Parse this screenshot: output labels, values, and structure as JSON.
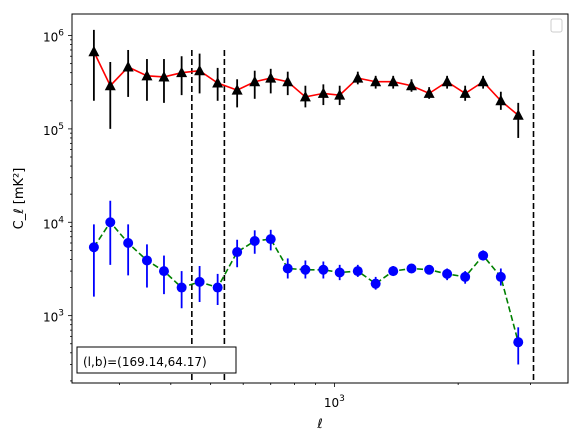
{
  "chart_data": {
    "type": "scatter",
    "xscale": "log",
    "yscale": "log",
    "xlim": [
      230,
      3700
    ],
    "ylim": [
      190,
      1700000
    ],
    "xlabel": "ℓ",
    "ylabel": "C_ℓ  [mK²]",
    "x_ticks": [
      {
        "value": 1000,
        "base": "10",
        "exp": "3"
      }
    ],
    "y_ticks": [
      {
        "value": 1000,
        "base": "10",
        "exp": "3"
      },
      {
        "value": 10000,
        "base": "10",
        "exp": "4"
      },
      {
        "value": 100000,
        "base": "10",
        "exp": "5"
      },
      {
        "value": 1000000,
        "base": "10",
        "exp": "6"
      }
    ],
    "grid": false,
    "legend": "top-right, empty",
    "annotation": "(l,b)=(169.14,64.17)",
    "vlines": [
      450,
      540,
      3050
    ],
    "series": [
      {
        "marker": "triangle",
        "marker_color": "#000000",
        "line_color": "#ff0000",
        "line_style": "solid",
        "points": [
          {
            "x": 260,
            "y": 670000,
            "lo": 200000,
            "hi": 1150000
          },
          {
            "x": 285,
            "y": 290000,
            "lo": 100000,
            "hi": 520000
          },
          {
            "x": 315,
            "y": 460000,
            "lo": 220000,
            "hi": 700000
          },
          {
            "x": 350,
            "y": 370000,
            "lo": 200000,
            "hi": 560000
          },
          {
            "x": 385,
            "y": 360000,
            "lo": 190000,
            "hi": 560000
          },
          {
            "x": 425,
            "y": 400000,
            "lo": 230000,
            "hi": 600000
          },
          {
            "x": 470,
            "y": 420000,
            "lo": 240000,
            "hi": 640000
          },
          {
            "x": 520,
            "y": 310000,
            "lo": 200000,
            "hi": 450000
          },
          {
            "x": 580,
            "y": 260000,
            "lo": 170000,
            "hi": 340000
          },
          {
            "x": 640,
            "y": 320000,
            "lo": 210000,
            "hi": 420000
          },
          {
            "x": 700,
            "y": 350000,
            "lo": 240000,
            "hi": 440000
          },
          {
            "x": 770,
            "y": 320000,
            "lo": 230000,
            "hi": 410000
          },
          {
            "x": 850,
            "y": 220000,
            "lo": 170000,
            "hi": 290000
          },
          {
            "x": 940,
            "y": 240000,
            "lo": 180000,
            "hi": 300000
          },
          {
            "x": 1030,
            "y": 230000,
            "lo": 180000,
            "hi": 290000
          },
          {
            "x": 1140,
            "y": 350000,
            "lo": 300000,
            "hi": 410000
          },
          {
            "x": 1260,
            "y": 320000,
            "lo": 270000,
            "hi": 370000
          },
          {
            "x": 1390,
            "y": 320000,
            "lo": 270000,
            "hi": 370000
          },
          {
            "x": 1540,
            "y": 290000,
            "lo": 250000,
            "hi": 340000
          },
          {
            "x": 1700,
            "y": 240000,
            "lo": 210000,
            "hi": 280000
          },
          {
            "x": 1880,
            "y": 320000,
            "lo": 270000,
            "hi": 370000
          },
          {
            "x": 2080,
            "y": 240000,
            "lo": 200000,
            "hi": 290000
          },
          {
            "x": 2300,
            "y": 320000,
            "lo": 270000,
            "hi": 370000
          },
          {
            "x": 2540,
            "y": 200000,
            "lo": 160000,
            "hi": 250000
          },
          {
            "x": 2800,
            "y": 140000,
            "lo": 80000,
            "hi": 190000
          }
        ]
      },
      {
        "marker": "circle",
        "marker_color": "#0000ff",
        "line_color": "#008000",
        "line_style": "dashed",
        "points": [
          {
            "x": 260,
            "y": 5400,
            "lo": 1600,
            "hi": 9500
          },
          {
            "x": 285,
            "y": 10000,
            "lo": 3500,
            "hi": 17000
          },
          {
            "x": 315,
            "y": 6000,
            "lo": 2700,
            "hi": 9500
          },
          {
            "x": 350,
            "y": 3900,
            "lo": 2000,
            "hi": 5800
          },
          {
            "x": 385,
            "y": 3000,
            "lo": 1700,
            "hi": 4400
          },
          {
            "x": 425,
            "y": 2000,
            "lo": 1200,
            "hi": 3000
          },
          {
            "x": 470,
            "y": 2300,
            "lo": 1400,
            "hi": 3400
          },
          {
            "x": 520,
            "y": 2000,
            "lo": 1300,
            "hi": 2800
          },
          {
            "x": 580,
            "y": 4800,
            "lo": 3300,
            "hi": 6500
          },
          {
            "x": 640,
            "y": 6300,
            "lo": 4600,
            "hi": 8200
          },
          {
            "x": 700,
            "y": 6600,
            "lo": 5000,
            "hi": 8300
          },
          {
            "x": 770,
            "y": 3200,
            "lo": 2500,
            "hi": 4100
          },
          {
            "x": 850,
            "y": 3100,
            "lo": 2500,
            "hi": 3900
          },
          {
            "x": 940,
            "y": 3100,
            "lo": 2500,
            "hi": 3800
          },
          {
            "x": 1030,
            "y": 2900,
            "lo": 2400,
            "hi": 3500
          },
          {
            "x": 1140,
            "y": 3000,
            "lo": 2600,
            "hi": 3500
          },
          {
            "x": 1260,
            "y": 2200,
            "lo": 1900,
            "hi": 2600
          },
          {
            "x": 1390,
            "y": 3000,
            "lo": 2700,
            "hi": 3400
          },
          {
            "x": 1540,
            "y": 3200,
            "lo": 2900,
            "hi": 3500
          },
          {
            "x": 1700,
            "y": 3100,
            "lo": 2800,
            "hi": 3400
          },
          {
            "x": 1880,
            "y": 2800,
            "lo": 2400,
            "hi": 3200
          },
          {
            "x": 2080,
            "y": 2600,
            "lo": 2200,
            "hi": 3000
          },
          {
            "x": 2300,
            "y": 4400,
            "lo": 3900,
            "hi": 5000
          },
          {
            "x": 2540,
            "y": 2600,
            "lo": 2100,
            "hi": 3200
          },
          {
            "x": 2800,
            "y": 520,
            "lo": 300,
            "hi": 750
          }
        ]
      }
    ]
  }
}
